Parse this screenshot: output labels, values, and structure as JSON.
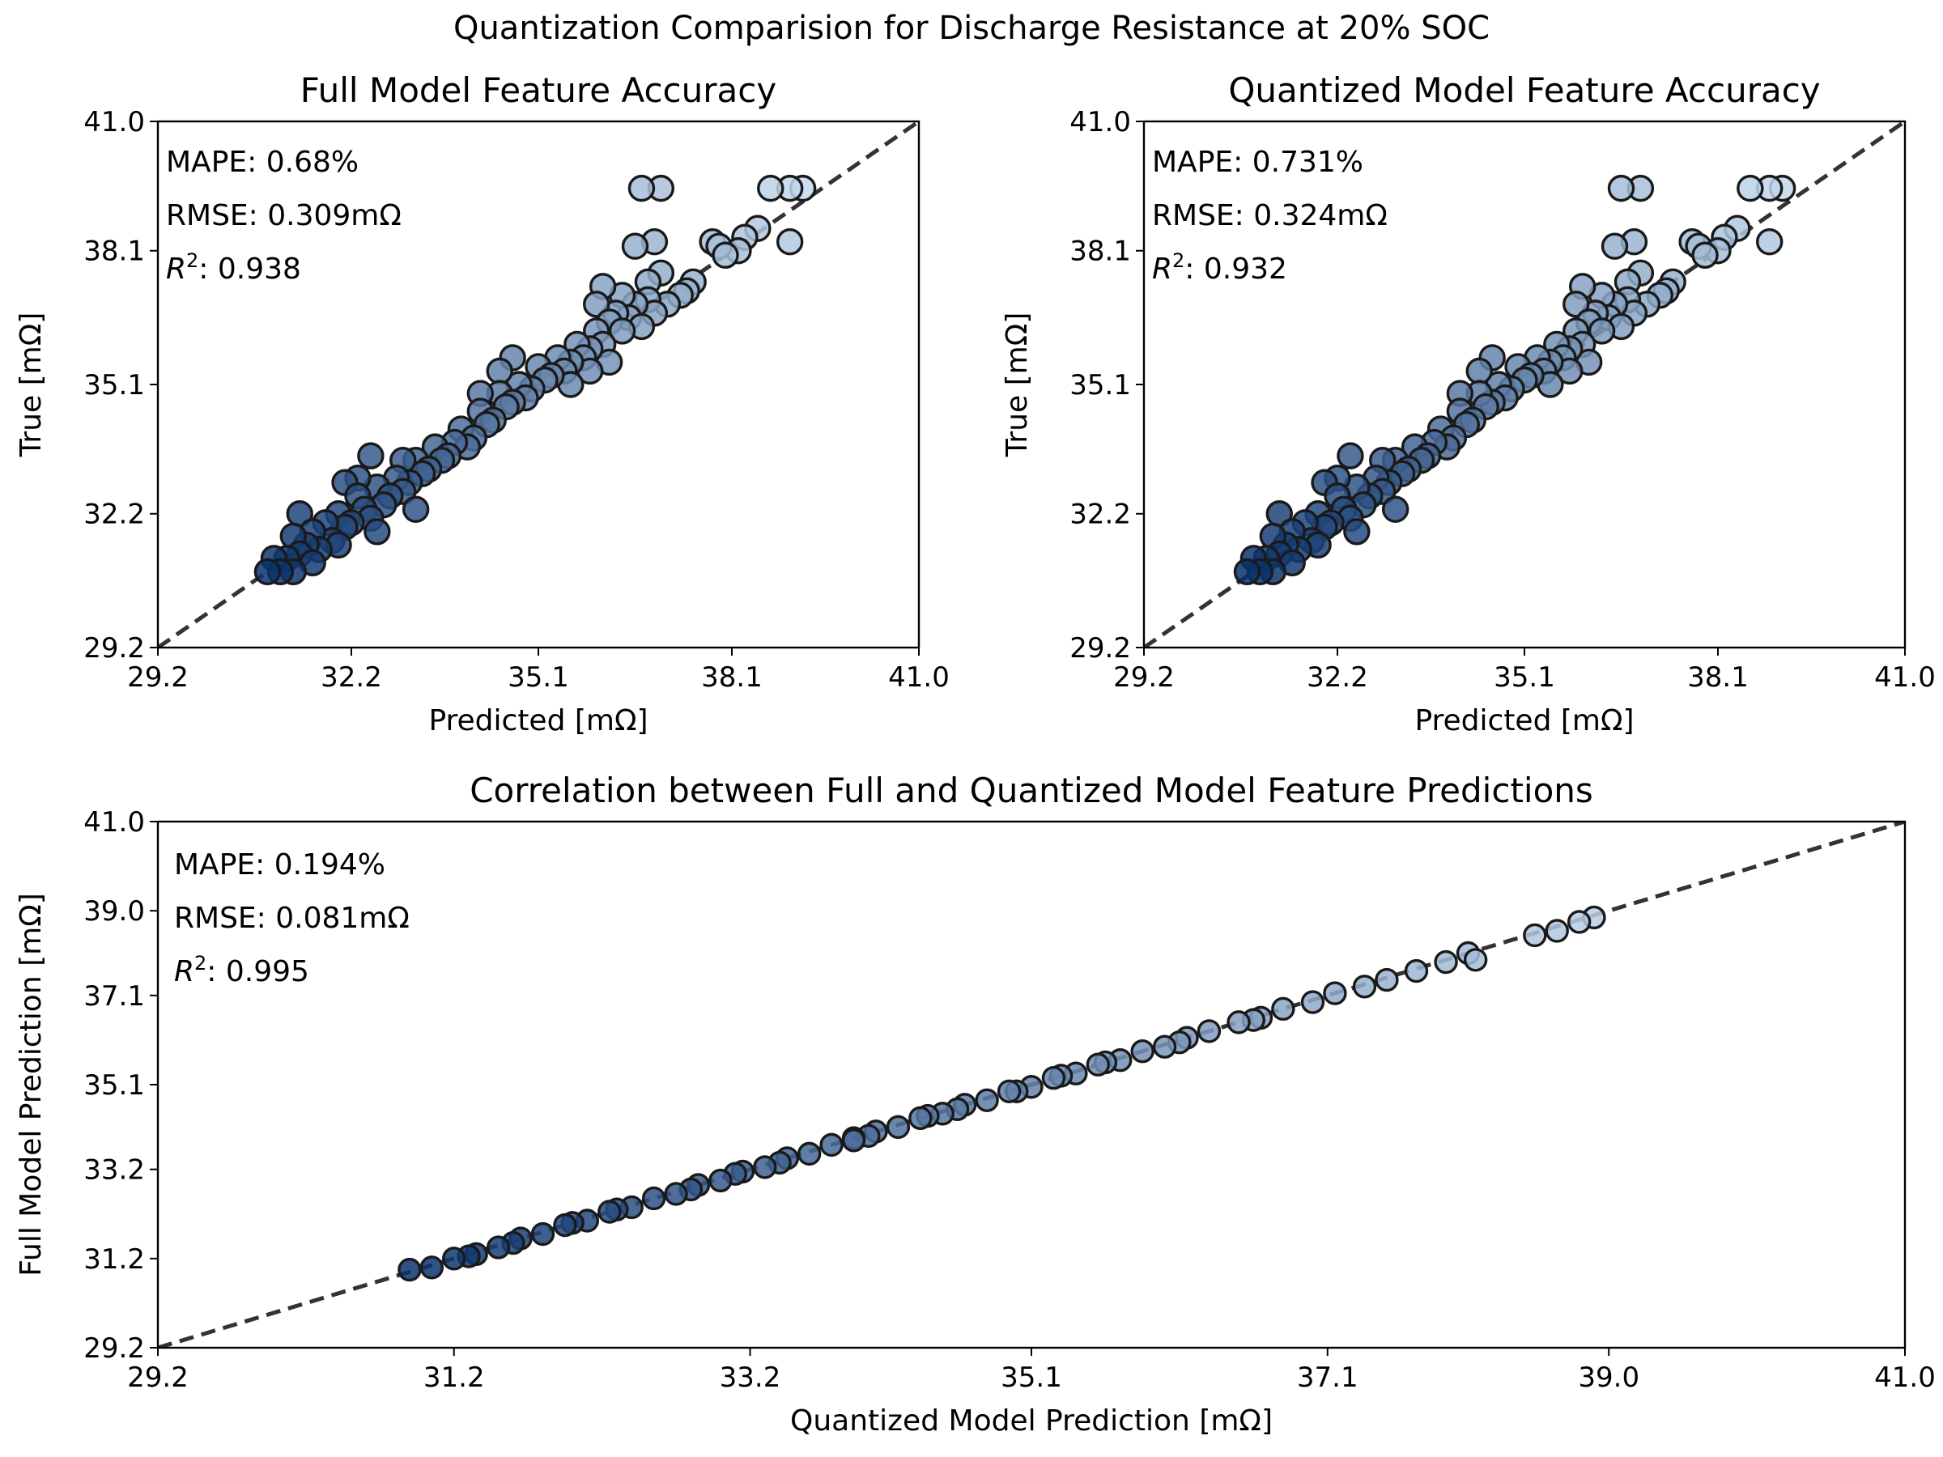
{
  "figure": {
    "suptitle": "Quantization Comparision for Discharge Resistance at 20% SOC"
  },
  "chart_data": [
    {
      "type": "scatter",
      "title": "Full Model Feature Accuracy",
      "xlabel": "Predicted [mΩ]",
      "ylabel": "True [mΩ]",
      "xlim": [
        29.2,
        41.0
      ],
      "ylim": [
        29.2,
        41.0
      ],
      "xticks": [
        "29.2",
        "32.2",
        "35.1",
        "38.1",
        "41.0"
      ],
      "yticks": [
        "29.2",
        "32.2",
        "35.1",
        "38.1",
        "41.0"
      ],
      "reference_line": "y = x (dashed)",
      "annotations": {
        "mape": "MAPE: 0.68%",
        "rmse": "RMSE: 0.309mΩ",
        "r2_label": "R",
        "r2_value": ": 0.938"
      },
      "colormap": [
        "#c6dbef",
        "#08306b"
      ],
      "points": [
        [
          30.9,
          30.9
        ],
        [
          31.1,
          30.9
        ],
        [
          31.3,
          30.9
        ],
        [
          31.0,
          31.2
        ],
        [
          31.2,
          31.2
        ],
        [
          31.4,
          31.3
        ],
        [
          31.5,
          31.5
        ],
        [
          31.3,
          31.7
        ],
        [
          31.6,
          31.8
        ],
        [
          31.8,
          32.0
        ],
        [
          31.7,
          31.4
        ],
        [
          31.9,
          31.6
        ],
        [
          32.1,
          31.9
        ],
        [
          32.0,
          32.2
        ],
        [
          32.2,
          32.0
        ],
        [
          32.4,
          32.3
        ],
        [
          32.3,
          32.6
        ],
        [
          32.5,
          32.1
        ],
        [
          32.7,
          32.4
        ],
        [
          32.6,
          32.8
        ],
        [
          32.8,
          32.6
        ],
        [
          33.0,
          32.7
        ],
        [
          32.9,
          33.0
        ],
        [
          33.1,
          32.9
        ],
        [
          33.3,
          33.1
        ],
        [
          33.2,
          33.4
        ],
        [
          33.4,
          33.2
        ],
        [
          33.6,
          33.4
        ],
        [
          33.5,
          33.7
        ],
        [
          33.7,
          33.5
        ],
        [
          32.3,
          33.0
        ],
        [
          32.5,
          33.5
        ],
        [
          32.1,
          32.9
        ],
        [
          31.6,
          31.1
        ],
        [
          31.4,
          32.2
        ],
        [
          32.6,
          31.8
        ],
        [
          33.0,
          33.4
        ],
        [
          33.8,
          33.8
        ],
        [
          34.0,
          33.7
        ],
        [
          33.9,
          34.1
        ],
        [
          34.1,
          33.9
        ],
        [
          34.3,
          34.2
        ],
        [
          34.2,
          34.5
        ],
        [
          34.4,
          34.3
        ],
        [
          34.6,
          34.6
        ],
        [
          34.5,
          34.9
        ],
        [
          34.7,
          34.7
        ],
        [
          34.9,
          34.8
        ],
        [
          34.8,
          35.1
        ],
        [
          35.0,
          35.0
        ],
        [
          35.2,
          35.2
        ],
        [
          35.1,
          35.5
        ],
        [
          35.3,
          35.3
        ],
        [
          35.5,
          35.4
        ],
        [
          35.4,
          35.7
        ],
        [
          35.6,
          35.6
        ],
        [
          35.8,
          35.7
        ],
        [
          35.7,
          36.0
        ],
        [
          35.9,
          35.9
        ],
        [
          36.1,
          36.0
        ],
        [
          34.5,
          35.4
        ],
        [
          34.7,
          35.7
        ],
        [
          34.2,
          34.9
        ],
        [
          35.6,
          35.1
        ],
        [
          35.9,
          35.4
        ],
        [
          36.2,
          35.6
        ],
        [
          36.0,
          36.3
        ],
        [
          36.2,
          36.5
        ],
        [
          36.4,
          36.3
        ],
        [
          36.3,
          36.7
        ],
        [
          36.5,
          36.6
        ],
        [
          36.7,
          36.4
        ],
        [
          36.6,
          36.9
        ],
        [
          36.8,
          37.0
        ],
        [
          36.1,
          37.3
        ],
        [
          36.4,
          37.1
        ],
        [
          36.9,
          36.7
        ],
        [
          37.1,
          36.9
        ],
        [
          37.3,
          37.1
        ],
        [
          37.5,
          37.4
        ],
        [
          37.4,
          37.2
        ],
        [
          36.8,
          37.4
        ],
        [
          37.0,
          37.6
        ],
        [
          36.0,
          36.9
        ],
        [
          36.6,
          38.2
        ],
        [
          36.9,
          38.3
        ],
        [
          36.7,
          39.5
        ],
        [
          37.0,
          39.5
        ],
        [
          37.8,
          38.3
        ],
        [
          38.0,
          38.0
        ],
        [
          38.2,
          38.1
        ],
        [
          37.9,
          38.2
        ],
        [
          38.7,
          39.5
        ],
        [
          39.0,
          39.5
        ],
        [
          39.2,
          39.5
        ],
        [
          39.0,
          38.3
        ],
        [
          38.5,
          38.6
        ],
        [
          38.3,
          38.4
        ],
        [
          33.2,
          32.3
        ],
        [
          32.0,
          31.5
        ]
      ]
    },
    {
      "type": "scatter",
      "title": "Quantized Model Feature Accuracy",
      "xlabel": "Predicted [mΩ]",
      "ylabel": "True [mΩ]",
      "xlim": [
        29.2,
        41.0
      ],
      "ylim": [
        29.2,
        41.0
      ],
      "xticks": [
        "29.2",
        "32.2",
        "35.1",
        "38.1",
        "41.0"
      ],
      "yticks": [
        "29.2",
        "32.2",
        "35.1",
        "38.1",
        "41.0"
      ],
      "reference_line": "y = x (dashed)",
      "annotations": {
        "mape": "MAPE: 0.731%",
        "rmse": "RMSE: 0.324mΩ",
        "r2_label": "R",
        "r2_value": ": 0.932"
      },
      "colormap": [
        "#c6dbef",
        "#08306b"
      ],
      "points": [
        [
          30.8,
          30.9
        ],
        [
          31.0,
          30.9
        ],
        [
          31.2,
          30.9
        ],
        [
          30.9,
          31.2
        ],
        [
          31.1,
          31.2
        ],
        [
          31.3,
          31.3
        ],
        [
          31.4,
          31.5
        ],
        [
          31.2,
          31.7
        ],
        [
          31.5,
          31.8
        ],
        [
          31.7,
          32.0
        ],
        [
          31.6,
          31.4
        ],
        [
          31.8,
          31.6
        ],
        [
          32.0,
          31.9
        ],
        [
          31.9,
          32.2
        ],
        [
          32.1,
          32.0
        ],
        [
          32.3,
          32.3
        ],
        [
          32.2,
          32.6
        ],
        [
          32.4,
          32.1
        ],
        [
          32.6,
          32.4
        ],
        [
          32.5,
          32.8
        ],
        [
          32.7,
          32.6
        ],
        [
          32.9,
          32.7
        ],
        [
          32.8,
          33.0
        ],
        [
          33.0,
          32.9
        ],
        [
          33.2,
          33.1
        ],
        [
          33.1,
          33.4
        ],
        [
          33.3,
          33.2
        ],
        [
          33.5,
          33.4
        ],
        [
          33.4,
          33.7
        ],
        [
          33.6,
          33.5
        ],
        [
          32.2,
          33.0
        ],
        [
          32.4,
          33.5
        ],
        [
          32.0,
          32.9
        ],
        [
          31.5,
          31.1
        ],
        [
          31.3,
          32.2
        ],
        [
          32.5,
          31.8
        ],
        [
          32.9,
          33.4
        ],
        [
          33.7,
          33.8
        ],
        [
          33.9,
          33.7
        ],
        [
          33.8,
          34.1
        ],
        [
          34.0,
          33.9
        ],
        [
          34.2,
          34.2
        ],
        [
          34.1,
          34.5
        ],
        [
          34.3,
          34.3
        ],
        [
          34.5,
          34.6
        ],
        [
          34.4,
          34.9
        ],
        [
          34.6,
          34.7
        ],
        [
          34.8,
          34.8
        ],
        [
          34.7,
          35.1
        ],
        [
          34.9,
          35.0
        ],
        [
          35.1,
          35.2
        ],
        [
          35.0,
          35.5
        ],
        [
          35.2,
          35.3
        ],
        [
          35.4,
          35.4
        ],
        [
          35.3,
          35.7
        ],
        [
          35.5,
          35.6
        ],
        [
          35.7,
          35.7
        ],
        [
          35.6,
          36.0
        ],
        [
          35.8,
          35.9
        ],
        [
          36.0,
          36.0
        ],
        [
          34.4,
          35.4
        ],
        [
          34.6,
          35.7
        ],
        [
          34.1,
          34.9
        ],
        [
          35.5,
          35.1
        ],
        [
          35.8,
          35.4
        ],
        [
          36.1,
          35.6
        ],
        [
          35.9,
          36.3
        ],
        [
          36.1,
          36.5
        ],
        [
          36.3,
          36.3
        ],
        [
          36.2,
          36.7
        ],
        [
          36.4,
          36.6
        ],
        [
          36.6,
          36.4
        ],
        [
          36.5,
          36.9
        ],
        [
          36.7,
          37.0
        ],
        [
          36.0,
          37.3
        ],
        [
          36.3,
          37.1
        ],
        [
          36.8,
          36.7
        ],
        [
          37.0,
          36.9
        ],
        [
          37.2,
          37.1
        ],
        [
          37.4,
          37.4
        ],
        [
          37.3,
          37.2
        ],
        [
          36.7,
          37.4
        ],
        [
          36.9,
          37.6
        ],
        [
          35.9,
          36.9
        ],
        [
          36.5,
          38.2
        ],
        [
          36.8,
          38.3
        ],
        [
          36.6,
          39.5
        ],
        [
          36.9,
          39.5
        ],
        [
          37.7,
          38.3
        ],
        [
          37.9,
          38.0
        ],
        [
          38.1,
          38.1
        ],
        [
          37.8,
          38.2
        ],
        [
          38.6,
          39.5
        ],
        [
          38.9,
          39.5
        ],
        [
          39.1,
          39.5
        ],
        [
          38.9,
          38.3
        ],
        [
          38.4,
          38.6
        ],
        [
          38.2,
          38.4
        ],
        [
          33.1,
          32.3
        ],
        [
          31.9,
          31.5
        ]
      ]
    },
    {
      "type": "scatter",
      "title": "Correlation between Full and Quantized Model Feature Predictions",
      "xlabel": "Quantized Model Prediction [mΩ]",
      "ylabel": "Full Model Prediction [mΩ]",
      "xlim": [
        29.2,
        41.0
      ],
      "ylim": [
        29.2,
        41.0
      ],
      "xticks": [
        "29.2",
        "31.2",
        "33.2",
        "35.1",
        "37.1",
        "39.0",
        "41.0"
      ],
      "yticks": [
        "29.2",
        "31.2",
        "33.2",
        "35.1",
        "37.1",
        "39.0",
        "41.0"
      ],
      "reference_line": "y = x (dashed)",
      "annotations": {
        "mape": "MAPE: 0.194%",
        "rmse": "RMSE: 0.081mΩ",
        "r2_label": "R",
        "r2_value": ": 0.995"
      },
      "colormap": [
        "#c6dbef",
        "#08306b"
      ],
      "points": [
        [
          30.9,
          30.95
        ],
        [
          31.05,
          31.0
        ],
        [
          31.2,
          31.2
        ],
        [
          31.35,
          31.3
        ],
        [
          31.5,
          31.45
        ],
        [
          31.65,
          31.65
        ],
        [
          31.8,
          31.75
        ],
        [
          31.95,
          31.95
        ],
        [
          32.1,
          32.05
        ],
        [
          32.25,
          32.25
        ],
        [
          32.4,
          32.35
        ],
        [
          32.55,
          32.55
        ],
        [
          32.7,
          32.65
        ],
        [
          32.85,
          32.85
        ],
        [
          33.0,
          32.95
        ],
        [
          33.15,
          33.15
        ],
        [
          33.3,
          33.25
        ],
        [
          33.45,
          33.45
        ],
        [
          33.6,
          33.55
        ],
        [
          33.75,
          33.75
        ],
        [
          33.9,
          33.85
        ],
        [
          34.05,
          34.05
        ],
        [
          34.2,
          34.15
        ],
        [
          34.35,
          34.35
        ],
        [
          34.5,
          34.45
        ],
        [
          34.65,
          34.65
        ],
        [
          34.8,
          34.75
        ],
        [
          34.95,
          34.95
        ],
        [
          35.1,
          35.05
        ],
        [
          35.25,
          35.25
        ],
        [
          35.4,
          35.35
        ],
        [
          35.55,
          35.55
        ],
        [
          35.7,
          35.65
        ],
        [
          35.85,
          35.85
        ],
        [
          36.0,
          35.95
        ],
        [
          36.15,
          36.15
        ],
        [
          36.3,
          36.3
        ],
        [
          36.5,
          36.5
        ],
        [
          36.65,
          36.6
        ],
        [
          36.8,
          36.8
        ],
        [
          37.0,
          36.95
        ],
        [
          37.15,
          37.15
        ],
        [
          37.35,
          37.3
        ],
        [
          37.5,
          37.45
        ],
        [
          37.7,
          37.65
        ],
        [
          37.9,
          37.85
        ],
        [
          38.05,
          38.05
        ],
        [
          38.1,
          37.9
        ],
        [
          38.5,
          38.45
        ],
        [
          38.65,
          38.55
        ],
        [
          38.8,
          38.75
        ],
        [
          38.9,
          38.85
        ],
        [
          31.6,
          31.55
        ],
        [
          32.0,
          32.0
        ],
        [
          32.8,
          32.75
        ],
        [
          33.4,
          33.35
        ],
        [
          34.0,
          33.95
        ],
        [
          34.6,
          34.55
        ],
        [
          35.0,
          34.95
        ],
        [
          35.6,
          35.6
        ],
        [
          36.1,
          36.05
        ],
        [
          36.6,
          36.55
        ],
        [
          31.3,
          31.25
        ],
        [
          32.3,
          32.3
        ],
        [
          33.1,
          33.1
        ],
        [
          33.9,
          33.9
        ],
        [
          34.4,
          34.4
        ],
        [
          35.3,
          35.3
        ]
      ]
    }
  ]
}
